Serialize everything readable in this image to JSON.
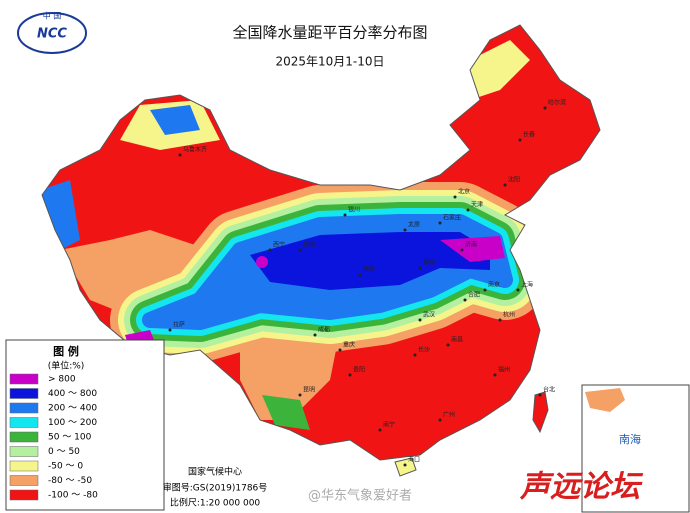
{
  "header": {
    "logo_top": "中 国",
    "logo_text": "NCC",
    "title": "全国降水量距平百分率分布图",
    "date": "2025年10月1-10日"
  },
  "legend": {
    "title": "图 例",
    "unit": "(单位:%)",
    "items": [
      {
        "label": "> 800",
        "color": "#c800c8"
      },
      {
        "label": "400 ～ 800",
        "color": "#0a14dc"
      },
      {
        "label": "200 ～ 400",
        "color": "#1e78f0"
      },
      {
        "label": "100 ～ 200",
        "color": "#14e6f0"
      },
      {
        "label": "50 ～ 100",
        "color": "#3cb43c"
      },
      {
        "label": "0 ～ 50",
        "color": "#b4f0a0"
      },
      {
        "label": "-50 ～ 0",
        "color": "#f5f58c"
      },
      {
        "label": "-80 ～ -50",
        "color": "#f5a064"
      },
      {
        "label": "-100 ～ -80",
        "color": "#f01414"
      }
    ]
  },
  "footer": {
    "agency": "国家气候中心",
    "approval": "审图号:GS(2019)1786号",
    "scale": "比例尺:1:20 000 000"
  },
  "inset": {
    "label": "南海"
  },
  "cities": [
    "乌鲁木齐",
    "哈尔滨",
    "长春",
    "沈阳",
    "北京",
    "天津",
    "石家庄",
    "太原",
    "济南",
    "郑州",
    "西安",
    "兰州",
    "西宁",
    "银川",
    "拉萨",
    "成都",
    "重庆",
    "武汉",
    "合肥",
    "南京",
    "上海",
    "杭州",
    "南昌",
    "长沙",
    "贵阳",
    "昆明",
    "南宁",
    "广州",
    "福州",
    "台北",
    "海口"
  ],
  "watermark": {
    "handle": "@华东气象爱好者",
    "forum": "声远论坛"
  }
}
